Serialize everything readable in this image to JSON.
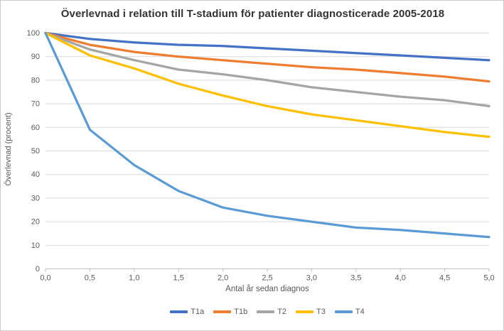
{
  "chart_data": {
    "type": "line",
    "title": "Överlevnad i relation till T-stadium för patienter diagnosticerade 2005-2018",
    "xlabel": "Antal år sedan diagnos",
    "ylabel": "Överlevnad (procent)",
    "xlim": [
      0,
      5
    ],
    "ylim": [
      0,
      100
    ],
    "grid": "horizontal",
    "legend_position": "bottom",
    "x": [
      0,
      0.5,
      1,
      1.5,
      2,
      2.5,
      3,
      3.5,
      4,
      4.5,
      5
    ],
    "x_tick_labels": [
      "0,0",
      "0,5",
      "1,0",
      "1,5",
      "2,0",
      "2,5",
      "3,0",
      "3,5",
      "4,0",
      "4,5",
      "5,0"
    ],
    "y_ticks": [
      0,
      10,
      20,
      30,
      40,
      50,
      60,
      70,
      80,
      90,
      100
    ],
    "y_tick_labels": [
      "0",
      "10",
      "20",
      "30",
      "40",
      "50",
      "60",
      "70",
      "80",
      "90",
      "100"
    ],
    "series": [
      {
        "name": "T1a",
        "color": "#4472C4",
        "values": [
          100,
          97.5,
          96,
          95,
          94.5,
          93.5,
          92.5,
          91.5,
          90.5,
          89.5,
          88.5
        ]
      },
      {
        "name": "T1b",
        "color": "#ED7D31",
        "values": [
          100,
          95,
          92,
          90,
          88.5,
          87,
          85.5,
          84.5,
          83,
          81.5,
          79.5
        ]
      },
      {
        "name": "T2",
        "color": "#A5A5A5",
        "values": [
          100,
          93,
          88.5,
          84.5,
          82.5,
          80,
          77,
          75,
          73,
          71.5,
          69
        ]
      },
      {
        "name": "T3",
        "color": "#FFC000",
        "values": [
          100,
          90.5,
          85,
          78.5,
          73.5,
          69,
          65.5,
          63,
          60.5,
          58,
          56
        ]
      },
      {
        "name": "T4",
        "color": "#5B9BD5",
        "values": [
          100,
          59,
          44,
          33,
          26,
          22.5,
          20,
          17.5,
          16.5,
          15,
          13.5
        ]
      }
    ]
  },
  "colors": {
    "gridline": "#D9D9D9",
    "axis_line": "#BFBFBF",
    "tick_text": "#595959",
    "title_text": "#333333",
    "background": "#FFFFFF"
  }
}
